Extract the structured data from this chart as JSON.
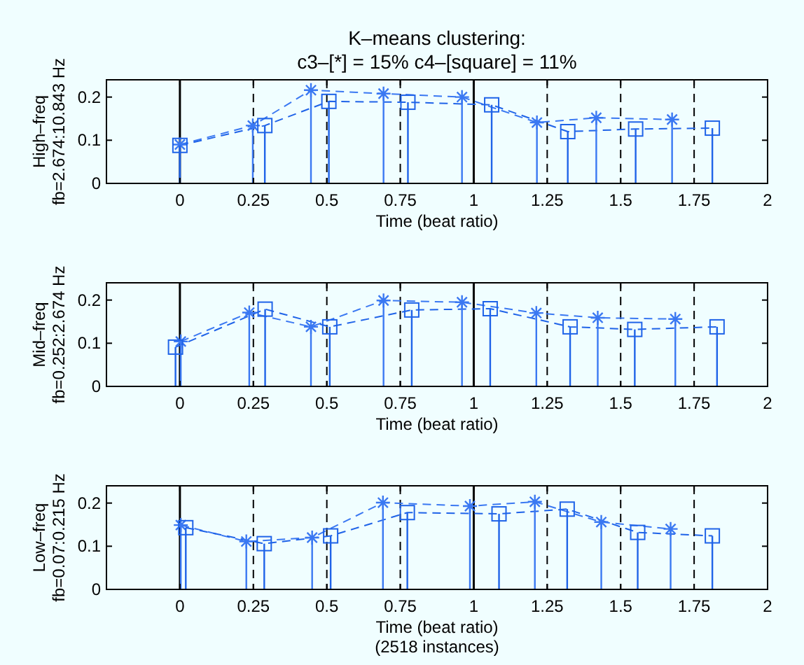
{
  "chart_data": [
    {
      "type": "lollipop",
      "title": "K–means clustering:\nc3–[*] = 15%  c4–[square] = 11%",
      "xlabel": "Time (beat ratio)",
      "ylabel": "High–freq\nfb=2.674:10.843 Hz",
      "xlim": [
        -0.25,
        2
      ],
      "xticks": [
        0,
        0.25,
        0.5,
        0.75,
        1,
        1.25,
        1.5,
        1.75,
        2
      ],
      "ylim": [
        0,
        0.24
      ],
      "yticks": [
        0,
        0.1,
        0.2
      ],
      "ref_lines": [
        {
          "axis": "x",
          "value": 0,
          "line_style": "solid",
          "color": "#000000"
        },
        {
          "axis": "x",
          "value": 0.25,
          "line_style": "dashed",
          "color": "#000000"
        },
        {
          "axis": "x",
          "value": 0.5,
          "line_style": "dashed",
          "color": "#000000"
        },
        {
          "axis": "x",
          "value": 0.75,
          "line_style": "dashed",
          "color": "#000000"
        },
        {
          "axis": "x",
          "value": 1,
          "line_style": "solid",
          "color": "#000000"
        },
        {
          "axis": "x",
          "value": 1.25,
          "line_style": "dashed",
          "color": "#000000"
        },
        {
          "axis": "x",
          "value": 1.5,
          "line_style": "dashed",
          "color": "#000000"
        },
        {
          "axis": "x",
          "value": 1.75,
          "line_style": "dashed",
          "color": "#000000"
        }
      ],
      "series": [
        {
          "type": "line",
          "line_style": "dashed",
          "marker": "none",
          "color": "#3a78f2",
          "x": [
            0,
            0.248,
            0.446,
            0.693,
            0.96,
            1.215,
            1.417,
            1.675
          ],
          "values": [
            0.09,
            0.134,
            0.216,
            0.208,
            0.2,
            0.141,
            0.152,
            0.148
          ]
        },
        {
          "type": "line",
          "line_style": "dashed",
          "marker": "none",
          "color": "#1f63e8",
          "x": [
            0,
            0.289,
            0.507,
            0.776,
            1.061,
            1.32,
            1.551,
            1.812
          ],
          "values": [
            0.088,
            0.134,
            0.19,
            0.188,
            0.182,
            0.12,
            0.126,
            0.128
          ]
        },
        {
          "marker": "cross",
          "color": "#3a78f2",
          "x": [
            0,
            0.248,
            0.446,
            0.693,
            0.96,
            1.215,
            1.417,
            1.675
          ],
          "values": [
            0.09,
            0.134,
            0.216,
            0.208,
            0.2,
            0.141,
            0.152,
            0.148
          ]
        },
        {
          "marker": "square",
          "color": "#1f63e8",
          "x": [
            0,
            0.289,
            0.507,
            0.776,
            1.061,
            1.32,
            1.551,
            1.812
          ],
          "values": [
            0.088,
            0.134,
            0.19,
            0.188,
            0.182,
            0.12,
            0.126,
            0.128
          ]
        }
      ]
    },
    {
      "type": "lollipop",
      "xlabel": "Time (beat ratio)",
      "ylabel": "Mid–freq\nfb=0.252:2.674 Hz",
      "xlim": [
        -0.25,
        2
      ],
      "xticks": [
        0,
        0.25,
        0.5,
        0.75,
        1,
        1.25,
        1.5,
        1.75,
        2
      ],
      "ylim": [
        0,
        0.24
      ],
      "yticks": [
        0,
        0.1,
        0.2
      ],
      "ref_lines": [
        {
          "axis": "x",
          "value": 0,
          "line_style": "solid",
          "color": "#000000"
        },
        {
          "axis": "x",
          "value": 0.25,
          "line_style": "dashed",
          "color": "#000000"
        },
        {
          "axis": "x",
          "value": 0.5,
          "line_style": "dashed",
          "color": "#000000"
        },
        {
          "axis": "x",
          "value": 0.75,
          "line_style": "dashed",
          "color": "#000000"
        },
        {
          "axis": "x",
          "value": 1,
          "line_style": "solid",
          "color": "#000000"
        },
        {
          "axis": "x",
          "value": 1.25,
          "line_style": "dashed",
          "color": "#000000"
        },
        {
          "axis": "x",
          "value": 1.5,
          "line_style": "dashed",
          "color": "#000000"
        },
        {
          "axis": "x",
          "value": 1.75,
          "line_style": "dashed",
          "color": "#000000"
        }
      ],
      "series": [
        {
          "type": "line",
          "line_style": "dashed",
          "marker": "none",
          "color": "#3a78f2",
          "x": [
            0.003,
            0.236,
            0.446,
            0.693,
            0.96,
            1.213,
            1.422,
            1.686
          ],
          "values": [
            0.104,
            0.171,
            0.138,
            0.199,
            0.195,
            0.17,
            0.159,
            0.156
          ]
        },
        {
          "type": "line",
          "line_style": "dashed",
          "marker": "none",
          "color": "#1f63e8",
          "x": [
            -0.015,
            0.29,
            0.51,
            0.789,
            1.056,
            1.328,
            1.548,
            1.828
          ],
          "values": [
            0.091,
            0.179,
            0.138,
            0.177,
            0.18,
            0.138,
            0.132,
            0.138
          ]
        },
        {
          "marker": "cross",
          "color": "#3a78f2",
          "x": [
            0.003,
            0.236,
            0.446,
            0.693,
            0.96,
            1.213,
            1.422,
            1.686
          ],
          "values": [
            0.104,
            0.171,
            0.138,
            0.199,
            0.195,
            0.17,
            0.159,
            0.156
          ]
        },
        {
          "marker": "square",
          "color": "#1f63e8",
          "x": [
            -0.015,
            0.29,
            0.51,
            0.789,
            1.056,
            1.328,
            1.548,
            1.828
          ],
          "values": [
            0.091,
            0.179,
            0.138,
            0.177,
            0.18,
            0.138,
            0.132,
            0.138
          ]
        }
      ]
    },
    {
      "type": "lollipop",
      "xlabel": "Time (beat ratio)",
      "ylabel": "Low–freq\nfb=0.07:0.215 Hz",
      "annotations": [
        "(2518 instances)"
      ],
      "xlim": [
        -0.25,
        2
      ],
      "xticks": [
        0,
        0.25,
        0.5,
        0.75,
        1,
        1.25,
        1.5,
        1.75,
        2
      ],
      "ylim": [
        0,
        0.24
      ],
      "yticks": [
        0,
        0.1,
        0.2
      ],
      "ref_lines": [
        {
          "axis": "x",
          "value": 0,
          "line_style": "solid",
          "color": "#000000"
        },
        {
          "axis": "x",
          "value": 0.25,
          "line_style": "dashed",
          "color": "#000000"
        },
        {
          "axis": "x",
          "value": 0.5,
          "line_style": "dashed",
          "color": "#000000"
        },
        {
          "axis": "x",
          "value": 0.75,
          "line_style": "dashed",
          "color": "#000000"
        },
        {
          "axis": "x",
          "value": 1,
          "line_style": "solid",
          "color": "#000000"
        },
        {
          "axis": "x",
          "value": 1.25,
          "line_style": "dashed",
          "color": "#000000"
        },
        {
          "axis": "x",
          "value": 1.5,
          "line_style": "dashed",
          "color": "#000000"
        },
        {
          "axis": "x",
          "value": 1.75,
          "line_style": "dashed",
          "color": "#000000"
        }
      ],
      "series": [
        {
          "type": "line",
          "line_style": "dashed",
          "marker": "none",
          "color": "#3a78f2",
          "x": [
            0.003,
            0.226,
            0.45,
            0.691,
            0.987,
            1.208,
            1.434,
            1.67
          ],
          "values": [
            0.149,
            0.111,
            0.12,
            0.201,
            0.193,
            0.203,
            0.156,
            0.14
          ]
        },
        {
          "type": "line",
          "line_style": "dashed",
          "marker": "none",
          "color": "#1f63e8",
          "x": [
            0.02,
            0.287,
            0.513,
            0.774,
            1.086,
            1.318,
            1.558,
            1.812
          ],
          "values": [
            0.143,
            0.106,
            0.124,
            0.178,
            0.175,
            0.186,
            0.132,
            0.124
          ]
        },
        {
          "marker": "cross",
          "color": "#3a78f2",
          "x": [
            0.003,
            0.226,
            0.45,
            0.691,
            0.987,
            1.208,
            1.434,
            1.67
          ],
          "values": [
            0.149,
            0.111,
            0.12,
            0.201,
            0.193,
            0.203,
            0.156,
            0.14
          ]
        },
        {
          "marker": "square",
          "color": "#1f63e8",
          "x": [
            0.02,
            0.287,
            0.513,
            0.774,
            1.086,
            1.318,
            1.558,
            1.812
          ],
          "values": [
            0.143,
            0.106,
            0.124,
            0.178,
            0.175,
            0.186,
            0.132,
            0.124
          ]
        }
      ]
    }
  ]
}
